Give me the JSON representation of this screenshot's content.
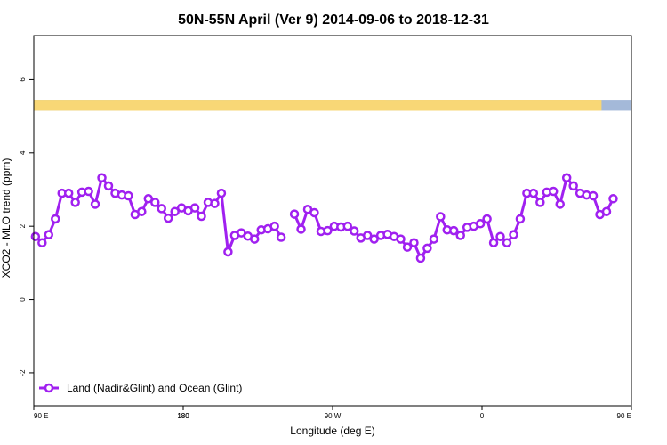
{
  "chart_data": {
    "type": "line",
    "title": "50N-55N April (Ver 9)   2014-09-06 to 2018-12-31",
    "xlabel": "Longitude (deg E)",
    "ylabel": "XCO2 - MLO trend (ppm)",
    "xlim": [
      90,
      450
    ],
    "ylim": [
      -2.9,
      7.2
    ],
    "x_ticks": [
      {
        "value": 90,
        "label": "90 E"
      },
      {
        "value": 180,
        "label": "180"
      },
      {
        "value": 270,
        "label": "90 W"
      },
      {
        "value": 360,
        "label": "0"
      },
      {
        "value": 450,
        "label": "90 E"
      },
      {
        "value": 540,
        "label": "180"
      }
    ],
    "y_ticks": [
      {
        "value": -2,
        "label": "-2"
      },
      {
        "value": 0,
        "label": "0"
      },
      {
        "value": 2,
        "label": "2"
      },
      {
        "value": 4,
        "label": "4"
      },
      {
        "value": 6,
        "label": "6"
      }
    ],
    "surface_band": {
      "y_range": [
        5.15,
        5.45
      ],
      "ocean_color": "#a4b9d9",
      "land_color": "#f8d776",
      "land_segments": [
        [
          90,
          140
        ],
        [
          142,
          189
        ],
        [
          209,
          302
        ],
        [
          312,
          365
        ],
        [
          370,
          430
        ],
        [
          432,
          499
        ],
        [
          505,
          540
        ]
      ]
    },
    "legend": {
      "position": "bottom-left"
    },
    "series": [
      {
        "name": "Land (Nadir&Glint) and Ocean (Glint)",
        "color": "#a020f0",
        "segments": [
          [
            [
              91,
              1.72
            ],
            [
              95,
              1.55
            ],
            [
              99,
              1.77
            ],
            [
              103,
              2.2
            ],
            [
              107,
              2.9
            ],
            [
              111,
              2.9
            ],
            [
              115,
              2.65
            ],
            [
              119,
              2.93
            ],
            [
              123,
              2.95
            ],
            [
              127,
              2.6
            ],
            [
              131,
              3.32
            ],
            [
              135,
              3.1
            ],
            [
              139,
              2.9
            ],
            [
              143,
              2.85
            ],
            [
              147,
              2.83
            ],
            [
              151,
              2.32
            ],
            [
              155,
              2.4
            ],
            [
              159,
              2.75
            ],
            [
              163,
              2.65
            ],
            [
              167,
              2.48
            ],
            [
              171,
              2.22
            ],
            [
              175,
              2.4
            ],
            [
              179,
              2.5
            ],
            [
              183,
              2.42
            ],
            [
              187,
              2.5
            ],
            [
              191,
              2.27
            ],
            [
              195,
              2.65
            ],
            [
              199,
              2.62
            ],
            [
              203,
              2.9
            ],
            [
              207,
              1.3
            ],
            [
              211,
              1.75
            ],
            [
              215,
              1.82
            ],
            [
              219,
              1.73
            ],
            [
              223,
              1.65
            ],
            [
              227,
              1.9
            ],
            [
              231,
              1.93
            ],
            [
              235,
              2.0
            ],
            [
              239,
              1.7
            ]
          ],
          [
            [
              247,
              2.33
            ],
            [
              251,
              1.92
            ],
            [
              255,
              2.46
            ],
            [
              259,
              2.37
            ],
            [
              263,
              1.86
            ],
            [
              267,
              1.88
            ],
            [
              271,
              2.0
            ],
            [
              275,
              1.98
            ],
            [
              279,
              2.0
            ],
            [
              283,
              1.87
            ],
            [
              287,
              1.68
            ],
            [
              291,
              1.75
            ],
            [
              295,
              1.65
            ],
            [
              299,
              1.75
            ],
            [
              303,
              1.78
            ],
            [
              307,
              1.72
            ],
            [
              311,
              1.65
            ],
            [
              315,
              1.43
            ],
            [
              319,
              1.55
            ],
            [
              323,
              1.13
            ],
            [
              327,
              1.4
            ],
            [
              331,
              1.65
            ],
            [
              335,
              2.26
            ],
            [
              339,
              1.9
            ],
            [
              343,
              1.88
            ],
            [
              347,
              1.75
            ],
            [
              351,
              1.97
            ],
            [
              355,
              2.0
            ],
            [
              359,
              2.07
            ],
            [
              363,
              2.2
            ],
            [
              367,
              1.55
            ],
            [
              371,
              1.72
            ],
            [
              375,
              1.55
            ],
            [
              379,
              1.77
            ],
            [
              383,
              2.2
            ],
            [
              387,
              2.9
            ],
            [
              391,
              2.9
            ],
            [
              395,
              2.65
            ],
            [
              399,
              2.93
            ],
            [
              403,
              2.95
            ],
            [
              407,
              2.6
            ],
            [
              411,
              3.32
            ],
            [
              415,
              3.1
            ],
            [
              419,
              2.9
            ],
            [
              423,
              2.85
            ],
            [
              427,
              2.83
            ],
            [
              431,
              2.32
            ],
            [
              435,
              2.4
            ],
            [
              439,
              2.75
            ]
          ]
        ]
      }
    ]
  }
}
